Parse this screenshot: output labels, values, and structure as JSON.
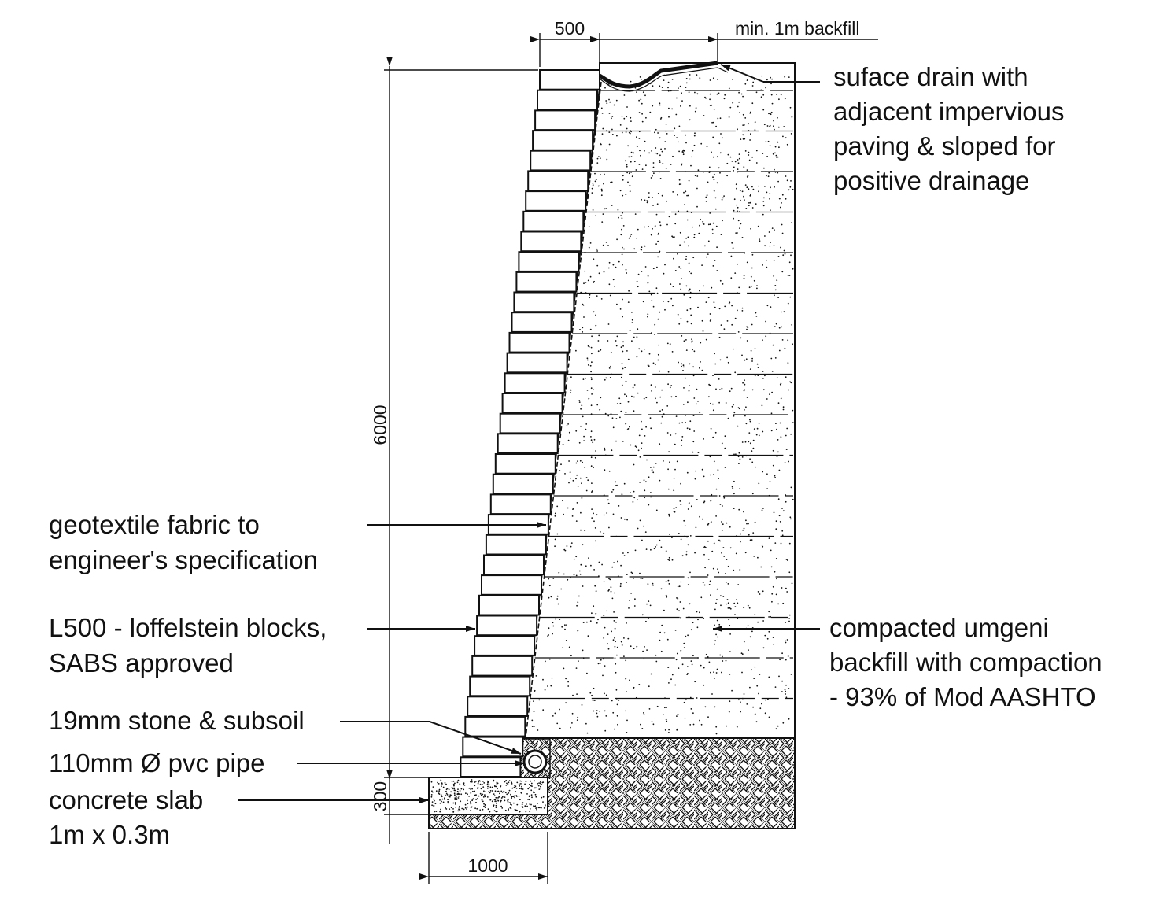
{
  "dimensions": {
    "block_width": "500",
    "backfill_width": "min. 1m backfill",
    "wall_height": "6000",
    "slab_thickness": "300",
    "slab_width": "1000"
  },
  "labels": {
    "surface_drain": [
      "suface drain with",
      "adjacent impervious",
      "paving & sloped for",
      "positive drainage"
    ],
    "geotextile": [
      "geotextile fabric to",
      "engineer's specification"
    ],
    "blocks": [
      "L500 - loffelstein blocks,",
      "SABS approved"
    ],
    "backfill": [
      "compacted umgeni",
      "backfill with compaction",
      "- 93% of Mod AASHTO"
    ],
    "stone": [
      "19mm stone & subsoil"
    ],
    "pipe": [
      "110mm Ø pvc pipe"
    ],
    "slab": [
      "concrete slab",
      "1m x 0.3m"
    ]
  },
  "colors": {
    "line": "#111111",
    "background": "#ffffff"
  }
}
